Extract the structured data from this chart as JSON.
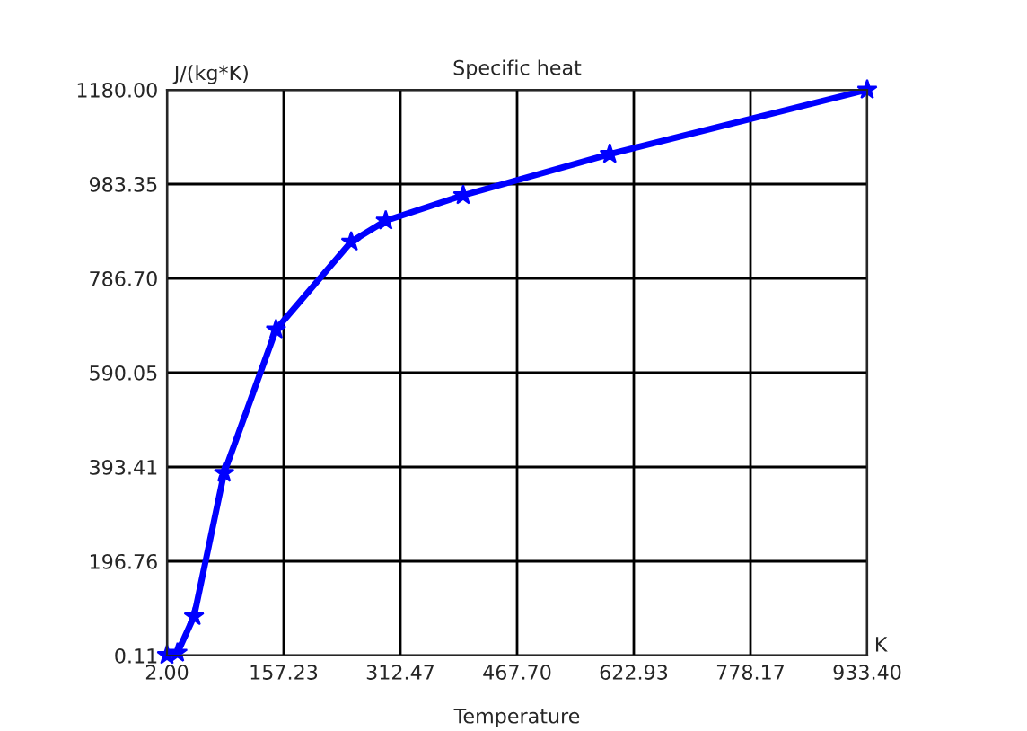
{
  "chart_data": {
    "type": "line",
    "title": "Specific heat",
    "xlabel": "Temperature",
    "ylabel": "J/(kg*K)",
    "annotations": [
      "K"
    ],
    "x": [
      2,
      16,
      38,
      78,
      147,
      247,
      293,
      396,
      591,
      933.4
    ],
    "series": [
      {
        "color": "#0000ff",
        "values": [
          1,
          6,
          82,
          381,
          680,
          863,
          907,
          960,
          1046,
          1180
        ]
      }
    ],
    "xlim": [
      2,
      933.4
    ],
    "xticks": [
      {
        "value": 2,
        "label": "2.00"
      },
      {
        "value": 157.23,
        "label": "157.23"
      },
      {
        "value": 312.47,
        "label": "312.47"
      },
      {
        "value": 467.7,
        "label": "467.70"
      },
      {
        "value": 622.93,
        "label": "622.93"
      },
      {
        "value": 778.17,
        "label": "778.17"
      },
      {
        "value": 933.4,
        "label": "933.40"
      }
    ],
    "ylim": [
      0.11,
      1180
    ],
    "yticks": [
      {
        "value": 0.11,
        "label": "0.11"
      },
      {
        "value": 196.76,
        "label": "196.76"
      },
      {
        "value": 393.41,
        "label": "393.41"
      },
      {
        "value": 590.05,
        "label": "590.05"
      },
      {
        "value": 786.7,
        "label": "786.70"
      },
      {
        "value": 983.35,
        "label": "983.35"
      },
      {
        "value": 1180,
        "label": "1180.00"
      }
    ],
    "grid": true,
    "marker": "star",
    "line_style": "solid"
  }
}
